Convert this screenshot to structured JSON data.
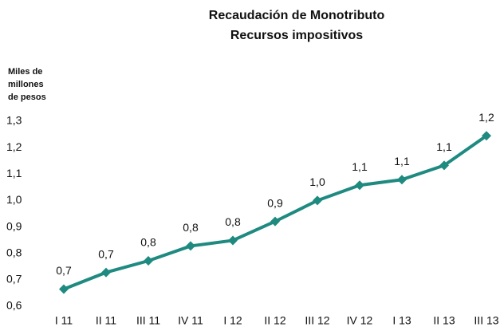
{
  "chart_data": {
    "type": "line",
    "title": [
      "Recaudación de Monotributo",
      "Recursos impositivos"
    ],
    "ylabel": [
      "Miles de",
      "millones",
      "de pesos"
    ],
    "categories": [
      "I 11",
      "II 11",
      "III 11",
      "IV 11",
      "I 12",
      "II 12",
      "III 12",
      "IV 12",
      "I 13",
      "II 13",
      "III 13"
    ],
    "series": [
      {
        "color": "#1f8a80",
        "values": [
          0.665,
          0.728,
          0.772,
          0.828,
          0.849,
          0.921,
          1.0,
          1.058,
          1.079,
          1.133,
          1.245
        ],
        "value_labels": [
          "0,7",
          "0,7",
          "0,8",
          "0,8",
          "0,8",
          "0,9",
          "1,0",
          "1,1",
          "1,1",
          "1,1",
          "1,2"
        ]
      }
    ],
    "ylim": [
      0.6,
      1.3
    ],
    "yticks": [
      {
        "value": 0.6,
        "label": "0,6"
      },
      {
        "value": 0.7,
        "label": "0,7"
      },
      {
        "value": 0.8,
        "label": "0,8"
      },
      {
        "value": 0.9,
        "label": "0,9"
      },
      {
        "value": 1.0,
        "label": "1,0"
      },
      {
        "value": 1.1,
        "label": "1,1"
      },
      {
        "value": 1.2,
        "label": "1,2"
      },
      {
        "value": 1.3,
        "label": "1,3"
      }
    ],
    "grid": false
  }
}
